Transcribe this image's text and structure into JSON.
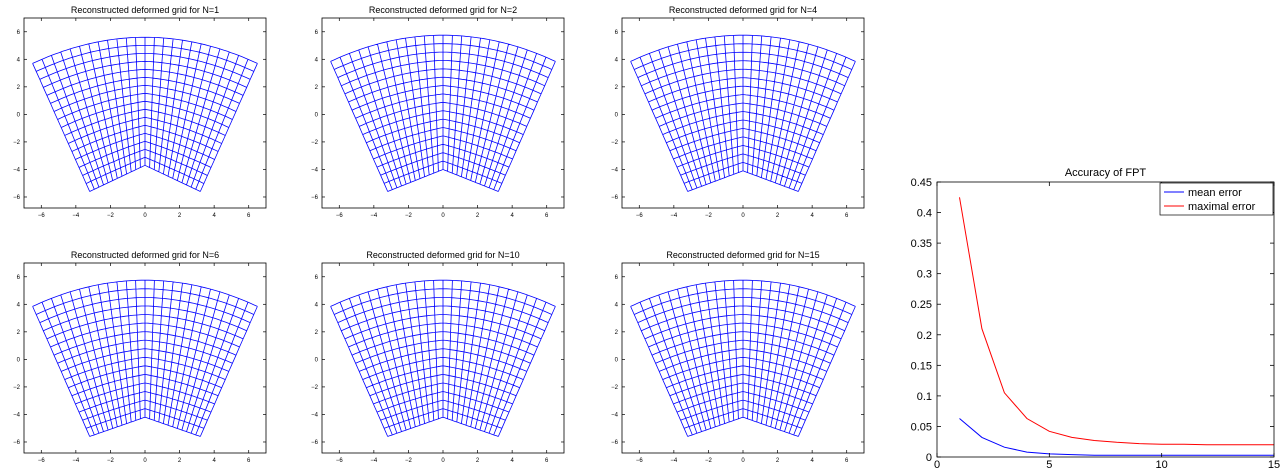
{
  "colors": {
    "grid_line": "#0000ff",
    "mean_line": "#0000ff",
    "max_line": "#ff0000",
    "axis": "#000000"
  },
  "grid_panels": [
    {
      "title": "Reconstructed deformed grid for N=1",
      "cusp_y": -3.7
    },
    {
      "title": "Reconstructed deformed grid for N=2",
      "cusp_y": -4.0
    },
    {
      "title": "Reconstructed deformed grid for N=4",
      "cusp_y": -4.1
    },
    {
      "title": "Reconstructed deformed grid for N=6",
      "cusp_y": -4.2
    },
    {
      "title": "Reconstructed deformed grid for N=10",
      "cusp_y": -4.2
    },
    {
      "title": "Reconstructed deformed grid for N=15",
      "cusp_y": -4.2
    }
  ],
  "grid_axes": {
    "xlim": [
      -7,
      7
    ],
    "ylim": [
      -6.8,
      7
    ],
    "xticks": [
      -6,
      -4,
      -2,
      0,
      2,
      4,
      6
    ],
    "yticks": [
      6,
      4,
      2,
      0,
      -2,
      -4,
      -6
    ]
  },
  "chart_data": {
    "type": "line",
    "title": "Accuracy of FPT",
    "xlabel": "",
    "ylabel": "",
    "xlim": [
      0,
      15
    ],
    "ylim": [
      0,
      0.45
    ],
    "xticks": [
      0,
      5,
      10,
      15
    ],
    "yticks": [
      0,
      0.05,
      0.1,
      0.15,
      0.2,
      0.25,
      0.3,
      0.35,
      0.4,
      0.45
    ],
    "x": [
      1,
      2,
      3,
      4,
      5,
      6,
      7,
      8,
      9,
      10,
      11,
      12,
      13,
      14,
      15
    ],
    "series": [
      {
        "name": "mean error",
        "color": "#0000ff",
        "values": [
          0.063,
          0.032,
          0.016,
          0.008,
          0.005,
          0.004,
          0.003,
          0.003,
          0.003,
          0.003,
          0.003,
          0.003,
          0.003,
          0.003,
          0.003
        ]
      },
      {
        "name": "maximal error",
        "color": "#ff0000",
        "values": [
          0.425,
          0.21,
          0.105,
          0.063,
          0.042,
          0.032,
          0.027,
          0.024,
          0.022,
          0.021,
          0.021,
          0.02,
          0.02,
          0.02,
          0.02
        ]
      }
    ],
    "legend": "top-right",
    "grid": false
  }
}
